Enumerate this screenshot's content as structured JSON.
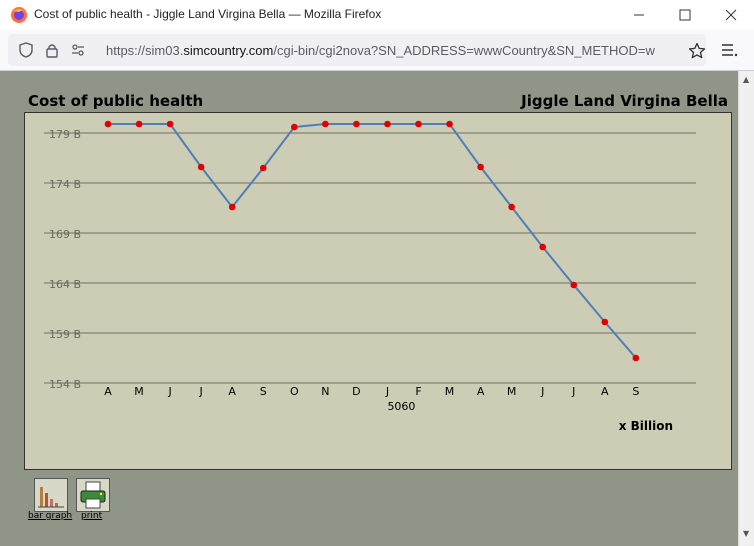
{
  "browser": {
    "window_title": "Cost of public health - Jiggle Land Virgina Bella — Mozilla Firefox",
    "url_prefix": "https://sim03.",
    "url_domain": "simcountry.com",
    "url_suffix": "/cgi-bin/cgi2nova?SN_ADDRESS=wwwCountry&SN_METHOD=w"
  },
  "page": {
    "title": "Cost of public health",
    "country": "Jiggle Land Virgina Bella",
    "tools": [
      {
        "label": "bar graph",
        "icon": "bar-graph-icon"
      },
      {
        "label": "print",
        "icon": "printer-icon"
      }
    ]
  },
  "chart_data": {
    "type": "line",
    "categories": [
      "A",
      "M",
      "J",
      "J",
      "A",
      "S",
      "O",
      "N",
      "D",
      "J",
      "F",
      "M",
      "A",
      "M",
      "J",
      "J",
      "A",
      "S"
    ],
    "values": [
      179.9,
      179.9,
      179.9,
      175.6,
      171.6,
      175.5,
      179.6,
      179.9,
      179.9,
      179.9,
      179.9,
      179.9,
      175.6,
      171.6,
      167.6,
      163.8,
      160.1,
      156.5
    ],
    "x_sublabel": "5060",
    "unit_label": "x Billion",
    "y_ticks": [
      "179 B",
      "174 B",
      "169 B",
      "164 B",
      "159 B",
      "154 B"
    ],
    "y_tick_values": [
      179,
      174,
      169,
      164,
      159,
      154
    ],
    "ylim": [
      154,
      179
    ],
    "line_color": "#4f7fb8",
    "point_color": "#e00000",
    "grid": true
  }
}
